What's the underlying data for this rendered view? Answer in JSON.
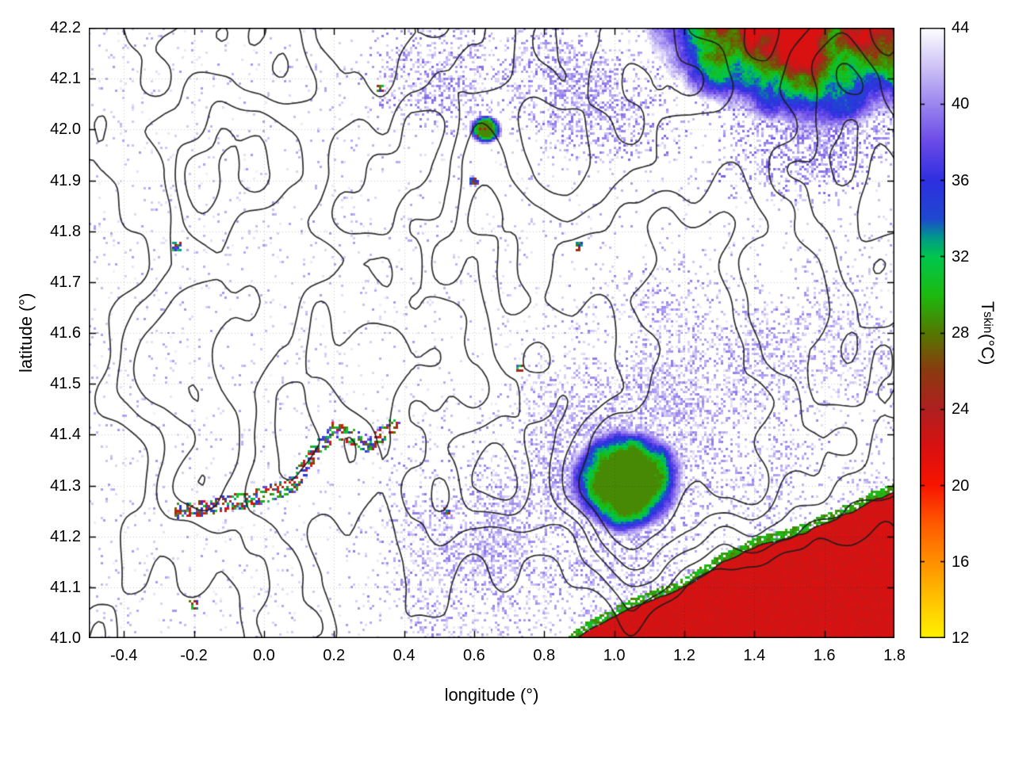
{
  "chart_data": {
    "type": "heatmap",
    "title": "",
    "xlabel": "longitude (°)",
    "ylabel": "latitude (°)",
    "xlim": [
      -0.5,
      1.8
    ],
    "ylim": [
      41.0,
      42.2
    ],
    "x_ticks": [
      -0.4,
      -0.2,
      0.0,
      0.2,
      0.4,
      0.6,
      0.8,
      1.0,
      1.2,
      1.4,
      1.6,
      1.8
    ],
    "x_tick_labels": [
      "-0.4",
      "-0.2",
      "0.0",
      "0.2",
      "0.4",
      "0.6",
      "0.8",
      "1.0",
      "1.2",
      "1.4",
      "1.6",
      "1.8"
    ],
    "y_ticks": [
      41.0,
      41.1,
      41.2,
      41.3,
      41.4,
      41.5,
      41.6,
      41.7,
      41.8,
      41.9,
      42.0,
      42.1,
      42.2
    ],
    "y_tick_labels": [
      "41.0",
      "41.1",
      "41.2",
      "41.3",
      "41.4",
      "41.5",
      "41.6",
      "41.7",
      "41.8",
      "41.9",
      "42.0",
      "42.1",
      "42.2"
    ],
    "grid": {
      "show": true,
      "style": "dotted"
    },
    "colorbar": {
      "label": {
        "prefix": "T",
        "sub": "skin",
        "suffix": " (°C)"
      },
      "min": 12,
      "max": 44,
      "tick_values": [
        44,
        40,
        36,
        32,
        28,
        24,
        20,
        16,
        12
      ],
      "tick_labels": [
        "44",
        "40",
        "36",
        "32",
        "28",
        "24",
        "20",
        "16",
        "12"
      ],
      "stops": [
        {
          "v": 12,
          "c": "#fff200"
        },
        {
          "v": 14,
          "c": "#ffc400"
        },
        {
          "v": 16,
          "c": "#ff9000"
        },
        {
          "v": 18,
          "c": "#ff5a00"
        },
        {
          "v": 20,
          "c": "#f81500"
        },
        {
          "v": 22,
          "c": "#d91111"
        },
        {
          "v": 24,
          "c": "#b02020"
        },
        {
          "v": 26,
          "c": "#8c3a10"
        },
        {
          "v": 28,
          "c": "#557800"
        },
        {
          "v": 30,
          "c": "#1dbb10"
        },
        {
          "v": 32,
          "c": "#00c74e"
        },
        {
          "v": 33,
          "c": "#009a8a"
        },
        {
          "v": 34,
          "c": "#1f49d0"
        },
        {
          "v": 36,
          "c": "#2f2fe0"
        },
        {
          "v": 38,
          "c": "#6a4ae8"
        },
        {
          "v": 40,
          "c": "#9b86ef"
        },
        {
          "v": 42,
          "c": "#cfc4f7"
        },
        {
          "v": 44,
          "c": "#ffffff"
        }
      ]
    },
    "features": [
      {
        "name": "land-base",
        "kind": "base",
        "value": 44
      },
      {
        "name": "sparse-speckle",
        "kind": "speckle-uniform",
        "density": 0.04,
        "value_range": [
          40.5,
          43.5
        ]
      },
      {
        "name": "south-band-speckle",
        "kind": "speckle-ellipse",
        "center": [
          0.75,
          41.2
        ],
        "rx": 0.55,
        "ry": 0.28,
        "density": 0.9,
        "value_range": [
          39.5,
          43.2
        ]
      },
      {
        "name": "southeast-band-speckle",
        "kind": "speckle-ellipse",
        "center": [
          1.15,
          41.45
        ],
        "rx": 0.5,
        "ry": 0.3,
        "density": 0.85,
        "value_range": [
          39.5,
          43.2
        ]
      },
      {
        "name": "east-speckle",
        "kind": "speckle-ellipse",
        "center": [
          1.6,
          41.4
        ],
        "rx": 0.32,
        "ry": 0.38,
        "density": 0.6,
        "value_range": [
          40.0,
          43.2
        ]
      },
      {
        "name": "top-center-speckle",
        "kind": "speckle-ellipse",
        "center": [
          0.6,
          42.12
        ],
        "rx": 0.35,
        "ry": 0.14,
        "density": 0.85,
        "value_range": [
          39.0,
          43.0
        ]
      },
      {
        "name": "top-mid-speckle",
        "kind": "speckle-ellipse",
        "center": [
          0.95,
          42.05
        ],
        "rx": 0.25,
        "ry": 0.13,
        "density": 0.75,
        "value_range": [
          39.0,
          43.0
        ]
      },
      {
        "name": "northeast-fringe-speckle",
        "kind": "speckle-ellipse",
        "center": [
          1.45,
          42.0
        ],
        "rx": 0.45,
        "ry": 0.16,
        "density": 0.9,
        "value_range": [
          38.5,
          42.5
        ]
      },
      {
        "name": "pyrenees-cold-patch",
        "kind": "cold-patch",
        "center": [
          1.55,
          42.32
        ],
        "rx": 0.52,
        "ry": 0.33,
        "strength": 24,
        "value_floor": 22
      },
      {
        "name": "southeast-massif-cluster",
        "kind": "cold-patch",
        "center": [
          1.04,
          41.31
        ],
        "rx": 0.17,
        "ry": 0.11,
        "strength": 16,
        "value_floor": 28.5
      },
      {
        "name": "small-cold-spot",
        "kind": "cold-patch",
        "center": [
          0.63,
          42.0
        ],
        "rx": 0.05,
        "ry": 0.03,
        "strength": 16,
        "value_floor": 28.5
      },
      {
        "name": "river-speck-line",
        "kind": "speck-line",
        "points": [
          [
            -0.24,
            41.25
          ],
          [
            -0.05,
            41.27
          ],
          [
            0.08,
            41.3
          ],
          [
            0.14,
            41.36
          ],
          [
            0.2,
            41.41
          ],
          [
            0.3,
            41.38
          ],
          [
            0.37,
            41.42
          ]
        ],
        "width": 0.016,
        "density": 0.5,
        "value_range": [
          20,
          39
        ]
      },
      {
        "name": "isolated-specks",
        "kind": "dots",
        "points": [
          [
            -0.2,
            41.065
          ],
          [
            0.33,
            42.08
          ],
          [
            0.6,
            41.9
          ],
          [
            0.62,
            41.995
          ],
          [
            -0.25,
            41.77
          ],
          [
            0.9,
            41.77
          ],
          [
            0.73,
            41.53
          ],
          [
            0.52,
            41.25
          ]
        ],
        "value_range": [
          22,
          38
        ]
      },
      {
        "name": "sea",
        "kind": "sea",
        "coast": [
          [
            0.88,
            41.0
          ],
          [
            1.05,
            41.06
          ],
          [
            1.2,
            41.1
          ],
          [
            1.35,
            41.16
          ],
          [
            1.5,
            41.2
          ],
          [
            1.65,
            41.24
          ],
          [
            1.8,
            41.28
          ]
        ],
        "value": 22.3,
        "fringe_value": 29.5,
        "fringe_width": 0.018
      }
    ],
    "contours": {
      "color": "#1b1b1b",
      "levels": [
        0.42,
        0.52,
        0.62,
        0.72,
        0.82
      ]
    }
  }
}
